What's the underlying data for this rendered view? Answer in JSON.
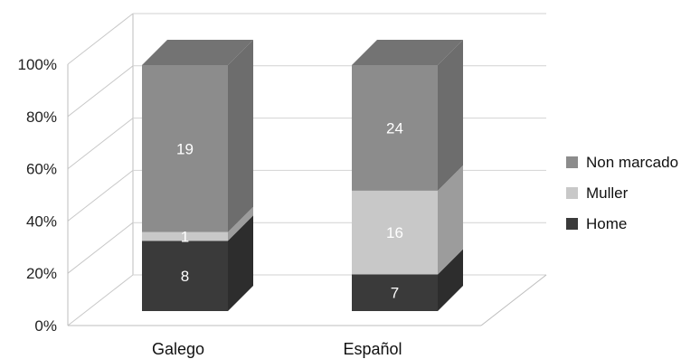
{
  "chart_data": {
    "type": "bar",
    "stacked": true,
    "normalized": true,
    "categories": [
      "Galego",
      "Español"
    ],
    "series": [
      {
        "name": "Home",
        "values": [
          8,
          7
        ],
        "color": "#3a3a3a"
      },
      {
        "name": "Muller",
        "values": [
          1,
          16
        ],
        "color": "#c8c8c8"
      },
      {
        "name": "Non marcado",
        "values": [
          19,
          24
        ],
        "color": "#8c8c8c"
      }
    ],
    "y_ticks": [
      "0%",
      "20%",
      "40%",
      "60%",
      "80%",
      "100%"
    ],
    "ylim": [
      0,
      100
    ],
    "grid": true,
    "legend_position": "right",
    "legend_order": [
      "Non marcado",
      "Muller",
      "Home"
    ]
  }
}
